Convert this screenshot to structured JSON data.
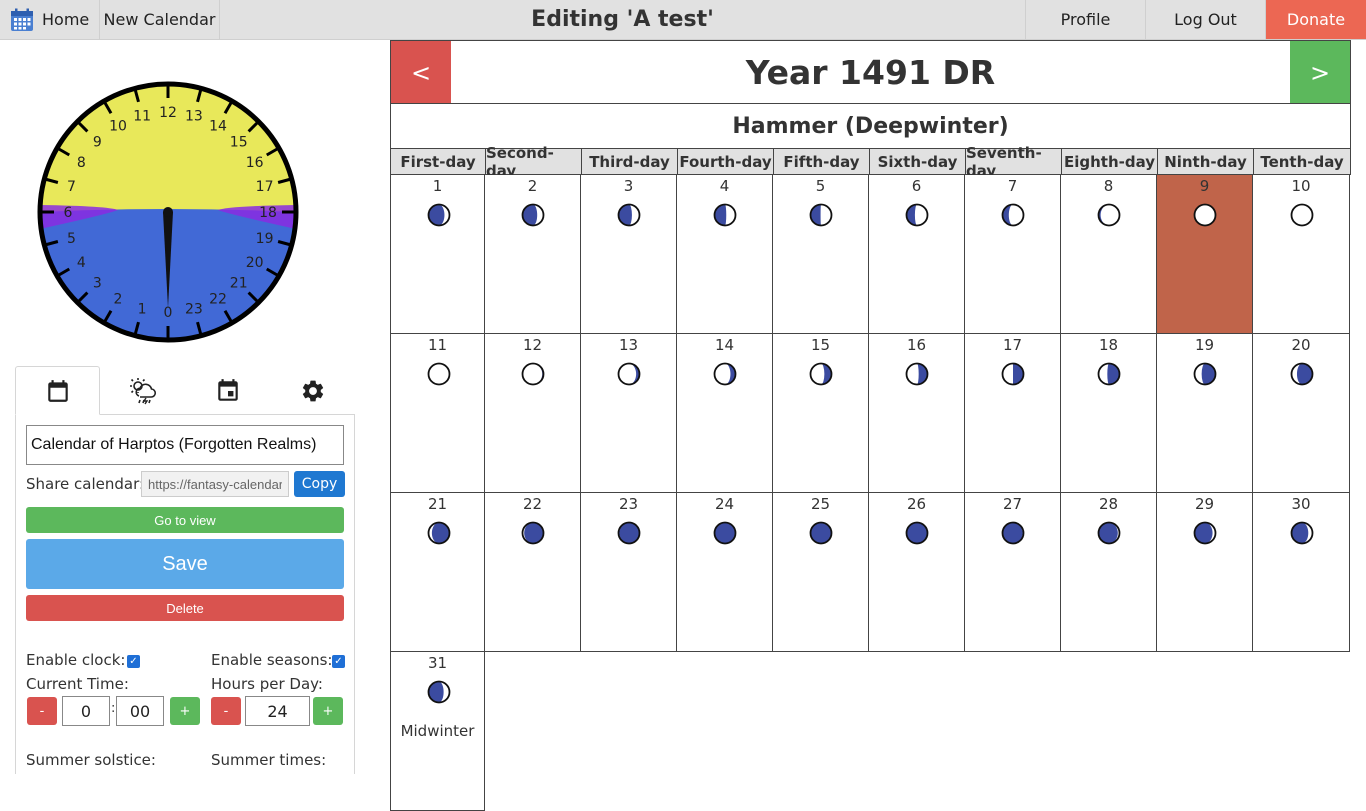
{
  "topbar": {
    "home": "Home",
    "new_calendar": "New Calendar",
    "title": "Editing 'A test'",
    "profile": "Profile",
    "logout": "Log Out",
    "donate": "Donate"
  },
  "clock": {
    "hours": [
      0,
      1,
      2,
      3,
      4,
      5,
      6,
      7,
      8,
      9,
      10,
      11,
      12,
      13,
      14,
      15,
      16,
      17,
      18,
      19,
      20,
      21,
      22,
      23
    ],
    "current_hour": 0,
    "current_minute": 0,
    "sunrise_hour": 6,
    "sunset_hour": 18,
    "colors": {
      "day": "#e8e85a",
      "night": "#4169d6",
      "twilight": "#8a2be2"
    }
  },
  "sidebar": {
    "tabs": [
      {
        "icon": "calendar-icon",
        "active": true
      },
      {
        "icon": "weather-icon",
        "active": false
      },
      {
        "icon": "event-icon",
        "active": false
      },
      {
        "icon": "gear-icon",
        "active": false
      }
    ],
    "calendar_name": "Calendar of Harptos (Forgotten Realms)",
    "share_label": "Share calendar:",
    "share_url": "https://fantasy-calendar.com/calendars/",
    "copy_label": "Copy",
    "view_label": "Go to view",
    "save_label": "Save",
    "delete_label": "Delete",
    "enable_clock_label": "Enable clock:",
    "enable_clock": true,
    "enable_seasons_label": "Enable seasons:",
    "enable_seasons": true,
    "current_time_label": "Current Time:",
    "current_hour": "0",
    "current_minute": "00",
    "hours_per_day_label": "Hours per Day:",
    "hours_per_day": "24",
    "minus": "-",
    "plus": "+",
    "time_sep": ":",
    "summer_solstice_label": "Summer solstice:",
    "summer_times_label": "Summer times:"
  },
  "calendar": {
    "prev": "<",
    "next": ">",
    "year_title": "Year 1491 DR",
    "month_title": "Hammer (Deepwinter)",
    "weekdays": [
      "First-day",
      "Second-day",
      "Third-day",
      "Fourth-day",
      "Fifth-day",
      "Sixth-day",
      "Seventh-day",
      "Eighth-day",
      "Ninth-day",
      "Tenth-day"
    ],
    "current_day": 9,
    "days": [
      {
        "n": "1",
        "phase": 0.62
      },
      {
        "n": "2",
        "phase": 0.65
      },
      {
        "n": "3",
        "phase": 0.68
      },
      {
        "n": "4",
        "phase": 0.72
      },
      {
        "n": "5",
        "phase": 0.76
      },
      {
        "n": "6",
        "phase": 0.8
      },
      {
        "n": "7",
        "phase": 0.85
      },
      {
        "n": "8",
        "phase": 0.95
      },
      {
        "n": "9",
        "phase": 0.0
      },
      {
        "n": "10",
        "phase": 0.0
      },
      {
        "n": "11",
        "phase": 0.0
      },
      {
        "n": "12",
        "phase": 0.03
      },
      {
        "n": "13",
        "phase": 0.08
      },
      {
        "n": "14",
        "phase": 0.12
      },
      {
        "n": "15",
        "phase": 0.17
      },
      {
        "n": "16",
        "phase": 0.21
      },
      {
        "n": "17",
        "phase": 0.25
      },
      {
        "n": "18",
        "phase": 0.29
      },
      {
        "n": "19",
        "phase": 0.33
      },
      {
        "n": "20",
        "phase": 0.37
      },
      {
        "n": "21",
        "phase": 0.42
      },
      {
        "n": "22",
        "phase": 0.46
      },
      {
        "n": "23",
        "phase": 0.48
      },
      {
        "n": "24",
        "phase": 0.49
      },
      {
        "n": "25",
        "phase": 0.5
      },
      {
        "n": "26",
        "phase": 0.5
      },
      {
        "n": "27",
        "phase": 0.52
      },
      {
        "n": "28",
        "phase": 0.54
      },
      {
        "n": "29",
        "phase": 0.57
      },
      {
        "n": "30",
        "phase": 0.6
      },
      {
        "n": "31",
        "phase": 0.64,
        "event": "Midwinter"
      }
    ],
    "colors": {
      "current_day": "#c0644a",
      "moon_dark": "#3b4ba0",
      "moon_light": "#ffffff"
    }
  }
}
